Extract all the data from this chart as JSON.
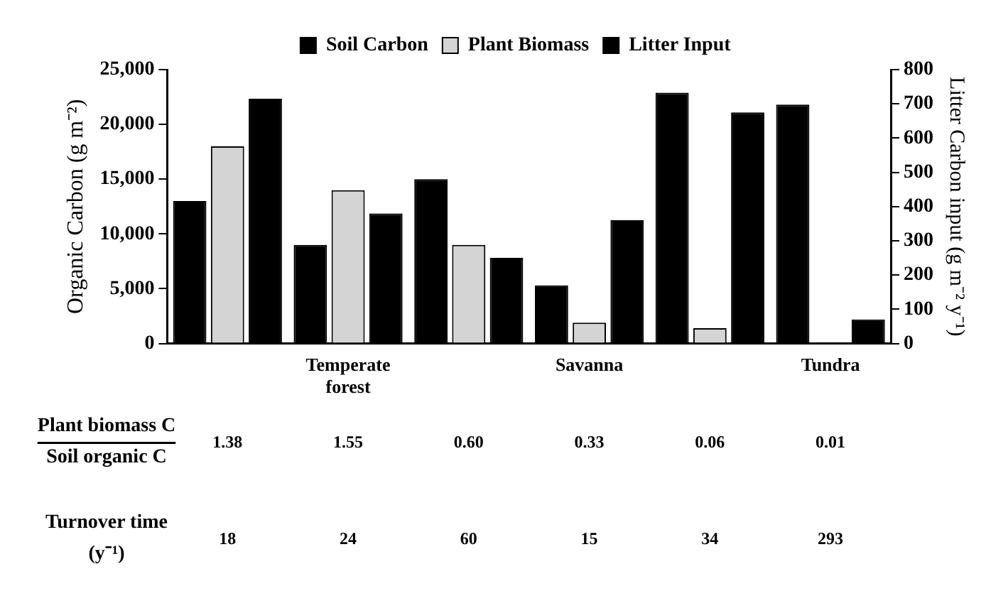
{
  "chart_data": {
    "type": "bar",
    "categories": [
      null,
      "Temperate forest",
      null,
      "Savanna",
      null,
      "Tundra"
    ],
    "series": [
      {
        "name": "Soil Carbon",
        "color": "#000000",
        "values": [
          13000,
          9000,
          15000,
          5300,
          22900,
          21800
        ]
      },
      {
        "name": "Plant Biomass",
        "color": "#d4d4d4",
        "values": [
          18000,
          14000,
          9000,
          1900,
          1400,
          null
        ]
      },
      {
        "name": "Litter Input",
        "color": "#000000",
        "axis": "y2",
        "values": [
          715,
          380,
          250,
          360,
          675,
          70
        ]
      }
    ],
    "ylabel": "Organic Carbon (g m⁻²)",
    "y2label": "Litter Carbon input (g m⁻² y⁻¹)",
    "ylim": [
      0,
      25000
    ],
    "yticks": [
      {
        "value": 0,
        "label": "0"
      },
      {
        "value": 5000,
        "label": "5,000"
      },
      {
        "value": 10000,
        "label": "10,000"
      },
      {
        "value": 15000,
        "label": "15,000"
      },
      {
        "value": 20000,
        "label": "20,000"
      },
      {
        "value": 25000,
        "label": "25,000"
      }
    ],
    "y2lim": [
      0,
      800
    ],
    "y2ticks": [
      0,
      100,
      200,
      300,
      400,
      500,
      600,
      700,
      800
    ],
    "annotations": [
      "Plant biomass C",
      "Soil organic C",
      "1.38",
      "1.55",
      "0.60",
      "0.33",
      "0.06",
      "0.01",
      "Turnover time",
      "(y⁻¹)",
      "18",
      "24",
      "60",
      "15",
      "34",
      "293"
    ],
    "legend": "top",
    "grid": false
  }
}
